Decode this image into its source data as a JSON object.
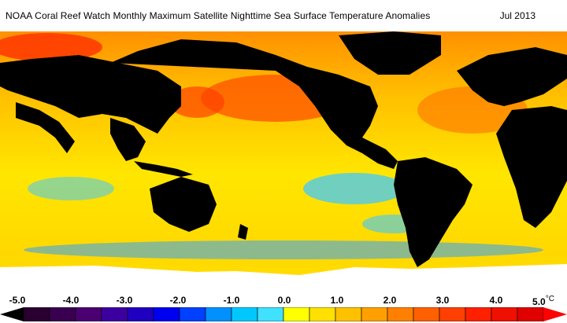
{
  "header": {
    "title": "NOAA Coral Reef Watch Monthly Maximum Satellite Nighttime Sea Surface Temperature Anomalies",
    "date": "Jul 2013"
  },
  "map": {
    "type": "global-sst-anomaly",
    "projection": "equirectangular",
    "land_color": "#000000",
    "ice_nodata_color": "#ffffff"
  },
  "legend": {
    "unit": "°C",
    "ticks": [
      "-5.0",
      "-4.0",
      "-3.0",
      "-2.0",
      "-1.0",
      "0.0",
      "1.0",
      "2.0",
      "3.0",
      "4.0",
      "5.0"
    ],
    "colors": [
      "#2a0030",
      "#3a0050",
      "#4a0070",
      "#3c00a0",
      "#2000c0",
      "#0000f0",
      "#0040ff",
      "#0090ff",
      "#00c8ff",
      "#40e0ff",
      "#ffff00",
      "#ffe000",
      "#ffc000",
      "#ffa000",
      "#ff8000",
      "#ff6000",
      "#ff4000",
      "#ff2000",
      "#f01000",
      "#e00000"
    ]
  }
}
